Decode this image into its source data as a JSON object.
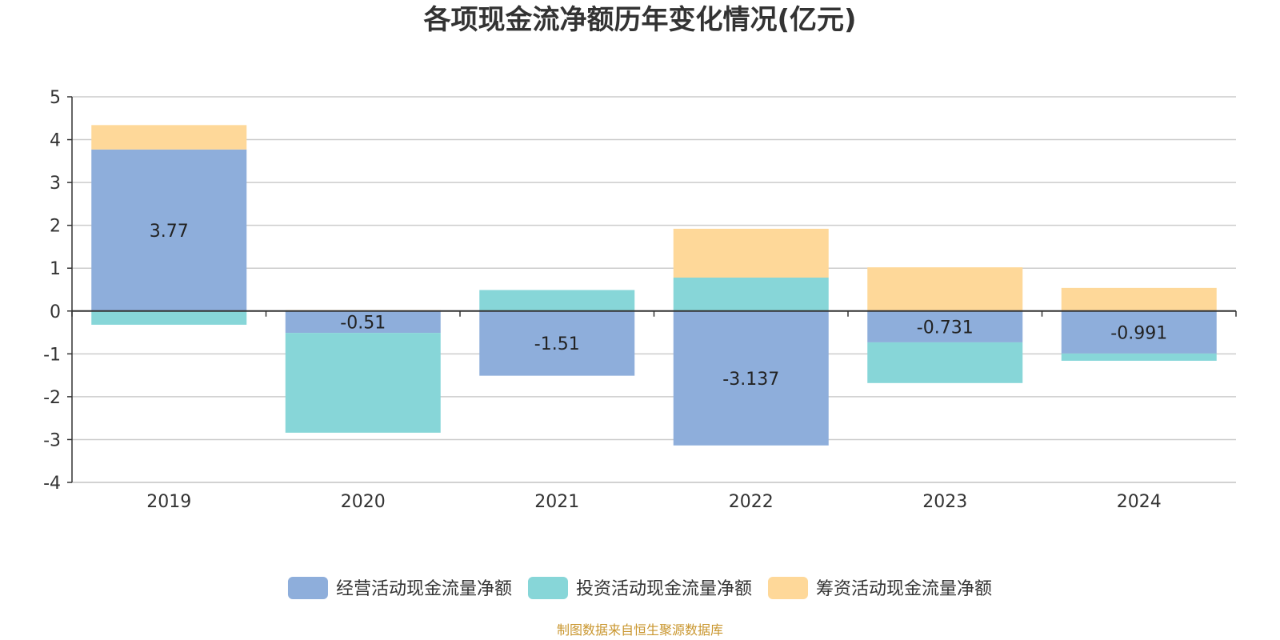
{
  "chart_data": {
    "type": "bar",
    "stacked": true,
    "title": "各项现金流净额历年变化情况(亿元)",
    "xlabel": "",
    "ylabel": "",
    "categories": [
      "2019",
      "2020",
      "2021",
      "2022",
      "2023",
      "2024"
    ],
    "ylim": [
      -4,
      5
    ],
    "yticks": [
      "5",
      "4",
      "3",
      "2",
      "1",
      "0",
      "-1",
      "-2",
      "-3",
      "-4"
    ],
    "grid": true,
    "legend_position": "bottom",
    "series": [
      {
        "name": "经营活动现金流量净额",
        "color": "#8eaedb",
        "values": [
          3.77,
          -0.51,
          -1.51,
          -3.137,
          -0.731,
          -0.991
        ],
        "labels": [
          "3.77",
          "-0.51",
          "-1.51",
          "-3.137",
          "-0.731",
          "-0.991"
        ]
      },
      {
        "name": "投资活动现金流量净额",
        "color": "#87d6d8",
        "values": [
          -0.32,
          -2.33,
          0.49,
          0.78,
          -0.95,
          -0.17
        ]
      },
      {
        "name": "筹资活动现金流量净额",
        "color": "#fed899",
        "values": [
          0.57,
          0.02,
          0.0,
          1.14,
          1.02,
          0.54
        ]
      }
    ]
  },
  "source": "制图数据来自恒生聚源数据库"
}
